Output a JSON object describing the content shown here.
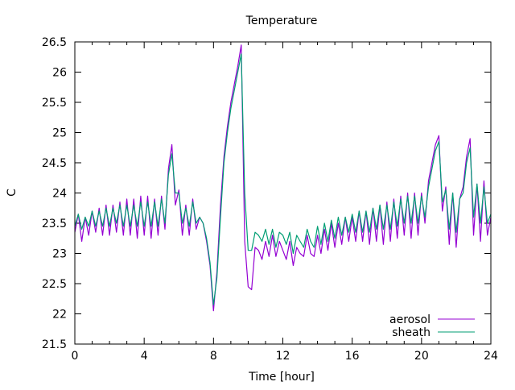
{
  "chart_data": {
    "type": "line",
    "title": "Temperature",
    "xlabel": "Time [hour]",
    "ylabel": "C",
    "xlim": [
      0,
      24
    ],
    "ylim": [
      21.5,
      26.5
    ],
    "x_ticks": [
      0,
      4,
      8,
      12,
      16,
      20,
      24
    ],
    "x_tick_labels": [
      "0",
      "4",
      "8",
      "12",
      "16",
      "20",
      "24"
    ],
    "y_ticks": [
      21.5,
      22,
      22.5,
      23,
      23.5,
      24,
      24.5,
      25,
      25.5,
      26,
      26.5
    ],
    "y_tick_labels": [
      "21.5",
      "22",
      "22.5",
      "23",
      "23.5",
      "24",
      "24.5",
      "25",
      "25.5",
      "26",
      "26.5"
    ],
    "grid": false,
    "legend_position": "bottom-right",
    "x_start": 0,
    "x_step": 0.2,
    "series": [
      {
        "name": "aerosol",
        "color": "#9400d3",
        "values": [
          23.35,
          23.65,
          23.2,
          23.6,
          23.3,
          23.7,
          23.35,
          23.75,
          23.3,
          23.8,
          23.3,
          23.8,
          23.35,
          23.85,
          23.3,
          23.9,
          23.3,
          23.9,
          23.25,
          23.95,
          23.3,
          23.95,
          23.25,
          23.9,
          23.3,
          23.95,
          23.4,
          24.4,
          24.8,
          23.8,
          24.05,
          23.3,
          23.8,
          23.3,
          23.9,
          23.4,
          23.6,
          23.5,
          23.2,
          22.8,
          22.05,
          22.7,
          23.8,
          24.6,
          25.1,
          25.5,
          25.8,
          26.1,
          26.45,
          23.2,
          22.45,
          22.4,
          23.1,
          23.05,
          22.9,
          23.2,
          22.95,
          23.3,
          22.95,
          23.2,
          23.05,
          22.9,
          23.2,
          22.8,
          23.1,
          23.0,
          22.95,
          23.3,
          23.0,
          22.95,
          23.3,
          23.0,
          23.4,
          23.05,
          23.5,
          23.1,
          23.5,
          23.15,
          23.6,
          23.2,
          23.6,
          23.2,
          23.7,
          23.2,
          23.7,
          23.15,
          23.75,
          23.2,
          23.8,
          23.15,
          23.85,
          23.2,
          23.9,
          23.25,
          23.95,
          23.3,
          24.0,
          23.25,
          24.0,
          23.3,
          24.0,
          23.5,
          24.2,
          24.5,
          24.8,
          24.95,
          23.7,
          24.1,
          23.15,
          24.0,
          23.1,
          23.9,
          24.1,
          24.6,
          24.9,
          23.3,
          24.15,
          23.2,
          24.2,
          23.3,
          23.6
        ]
      },
      {
        "name": "sheath",
        "color": "#009e73",
        "values": [
          23.45,
          23.65,
          23.4,
          23.6,
          23.45,
          23.7,
          23.45,
          23.7,
          23.45,
          23.75,
          23.45,
          23.75,
          23.5,
          23.8,
          23.45,
          23.8,
          23.45,
          23.8,
          23.45,
          23.85,
          23.45,
          23.85,
          23.45,
          23.85,
          23.45,
          23.9,
          23.5,
          24.3,
          24.65,
          24.0,
          24.0,
          23.5,
          23.75,
          23.45,
          23.85,
          23.5,
          23.6,
          23.5,
          23.25,
          22.85,
          22.15,
          22.6,
          23.6,
          24.5,
          25.0,
          25.4,
          25.7,
          26.0,
          26.3,
          24.0,
          23.05,
          23.05,
          23.35,
          23.3,
          23.2,
          23.4,
          23.15,
          23.4,
          23.1,
          23.35,
          23.3,
          23.15,
          23.35,
          23.0,
          23.3,
          23.2,
          23.1,
          23.4,
          23.2,
          23.1,
          23.45,
          23.15,
          23.5,
          23.2,
          23.55,
          23.25,
          23.6,
          23.3,
          23.6,
          23.35,
          23.65,
          23.35,
          23.7,
          23.35,
          23.7,
          23.35,
          23.75,
          23.4,
          23.8,
          23.4,
          23.8,
          23.4,
          23.85,
          23.45,
          23.9,
          23.5,
          23.95,
          23.5,
          23.95,
          23.5,
          23.95,
          23.6,
          24.1,
          24.4,
          24.7,
          24.85,
          23.85,
          24.05,
          23.4,
          24.0,
          23.35,
          23.9,
          24.0,
          24.5,
          24.75,
          23.6,
          24.15,
          23.5,
          24.1,
          23.5,
          23.65
        ]
      }
    ]
  }
}
